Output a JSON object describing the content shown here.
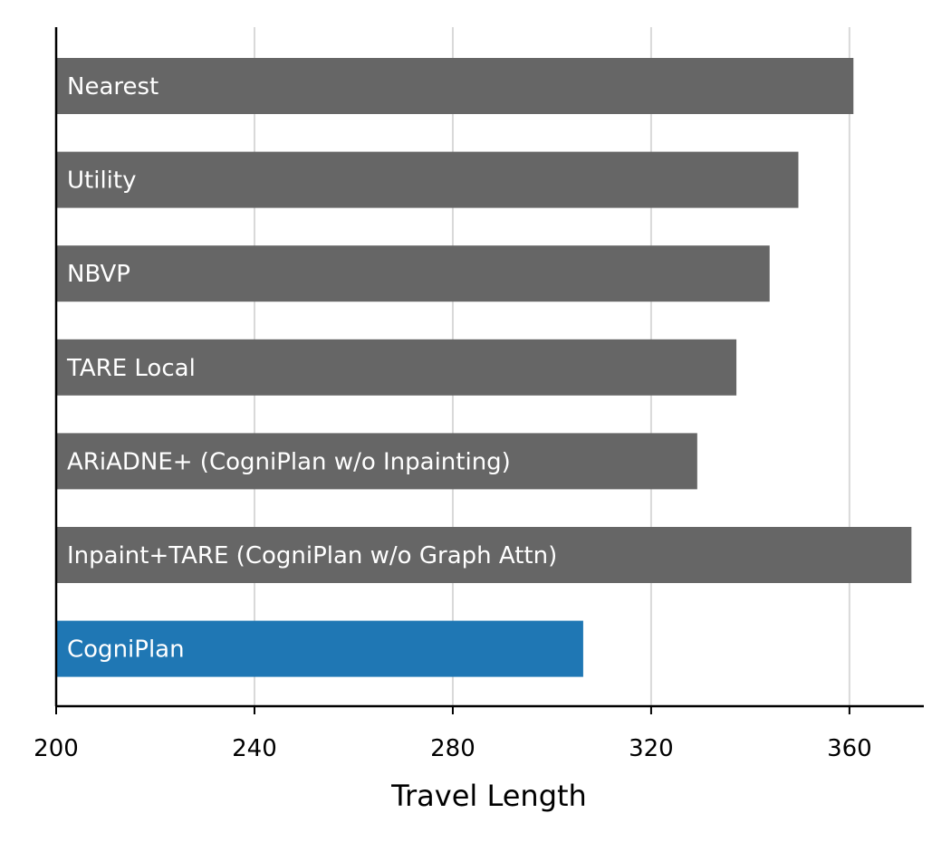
{
  "chart_data": {
    "type": "bar",
    "orientation": "horizontal",
    "title": "",
    "xlabel": "Travel Length",
    "ylabel": "",
    "xlim": [
      200,
      375
    ],
    "xticks": [
      200,
      240,
      280,
      320,
      360
    ],
    "grid": {
      "x": true,
      "y": false
    },
    "legend": "none",
    "label_placement": "inside-left",
    "categories": [
      "Nearest",
      "Utility",
      "NBVP",
      "TARE Local",
      "ARiADNE+ (CogniPlan w/o Inpainting)",
      "Inpaint+TARE (CogniPlan w/o Graph Attn)",
      "CogniPlan"
    ],
    "values": [
      360.8,
      349.7,
      343.9,
      337.2,
      329.3,
      372.5,
      306.3
    ],
    "colors": [
      "#666666",
      "#666666",
      "#666666",
      "#666666",
      "#666666",
      "#666666",
      "#1f77b4"
    ]
  }
}
